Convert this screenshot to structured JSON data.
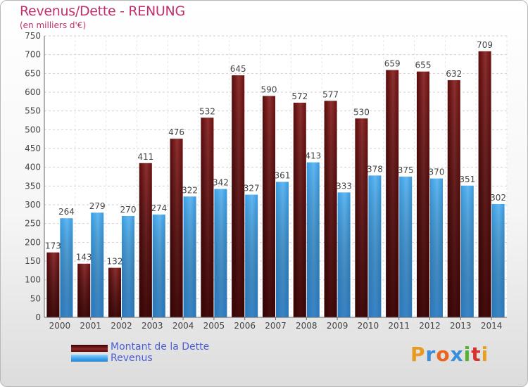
{
  "title": "Revenus/Dette - RENUNG",
  "subtitle": "(en milliers d'€)",
  "logo_text": "Proxiti",
  "chart_data": {
    "type": "bar",
    "categories": [
      "2000",
      "2001",
      "2002",
      "2003",
      "2004",
      "2005",
      "2006",
      "2007",
      "2008",
      "2009",
      "2010",
      "2011",
      "2012",
      "2013",
      "2014"
    ],
    "series": [
      {
        "name": "Montant de la Dette",
        "color": "#7a2323",
        "values": [
          173,
          143,
          132,
          411,
          476,
          532,
          645,
          590,
          572,
          577,
          530,
          659,
          655,
          632,
          709
        ]
      },
      {
        "name": "Revenus",
        "color": "#3aa0e8",
        "values": [
          264,
          279,
          270,
          274,
          322,
          342,
          327,
          361,
          413,
          333,
          378,
          375,
          370,
          351,
          302
        ]
      }
    ],
    "ylim": [
      0,
      750
    ],
    "yticks": [
      0,
      50,
      100,
      150,
      200,
      250,
      300,
      350,
      400,
      450,
      500,
      550,
      600,
      650,
      700,
      750
    ],
    "grid": true,
    "legend_position": "bottom-left"
  }
}
